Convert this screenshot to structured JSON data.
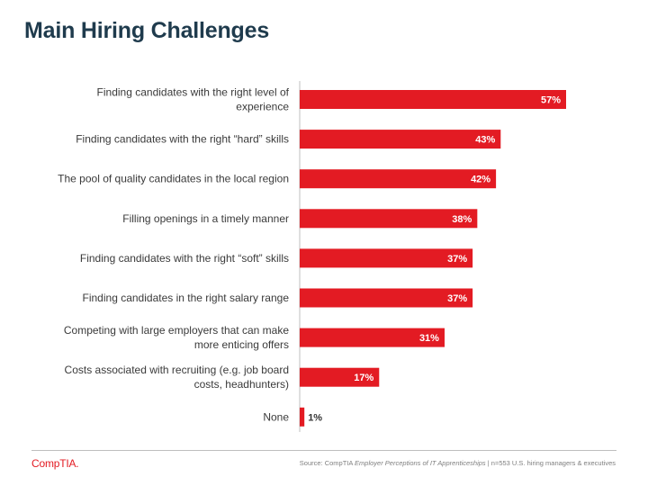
{
  "title": "Main Hiring Challenges",
  "colors": {
    "bar": "#e31b23",
    "axis": "#bfbfbf",
    "title": "#1f3b4d",
    "label": "#3a3a3a",
    "value_inside": "#ffffff",
    "value_outside": "#333333"
  },
  "chart_data": {
    "type": "bar",
    "orientation": "horizontal",
    "title": "Main Hiring Challenges",
    "xlabel": "",
    "ylabel": "",
    "xlim": [
      0,
      57
    ],
    "grid": false,
    "legend": "none",
    "unit": "%",
    "categories": [
      [
        "Finding candidates with the right level of",
        "experience"
      ],
      [
        "Finding candidates with the right “hard” skills"
      ],
      [
        "The pool of quality candidates in the local region"
      ],
      [
        "Filling openings in a timely manner"
      ],
      [
        "Finding candidates with the right “soft” skills"
      ],
      [
        "Finding candidates in the right salary range"
      ],
      [
        "Competing with large employers that can make",
        "more enticing offers"
      ],
      [
        "Costs associated with recruiting (e.g. job board",
        "costs, headhunters)"
      ],
      [
        "None"
      ]
    ],
    "values": [
      57,
      43,
      42,
      38,
      37,
      37,
      31,
      17,
      1
    ],
    "value_labels": [
      "57%",
      "43%",
      "42%",
      "38%",
      "37%",
      "37%",
      "31%",
      "17%",
      "1%"
    ]
  },
  "footer": {
    "logo_text": "CompTIA.",
    "source_prefix": "Source: CompTIA ",
    "source_title": "Employer Perceptions of IT Apprenticeships",
    "source_suffix": " | n=553 U.S. hiring managers & executives"
  }
}
